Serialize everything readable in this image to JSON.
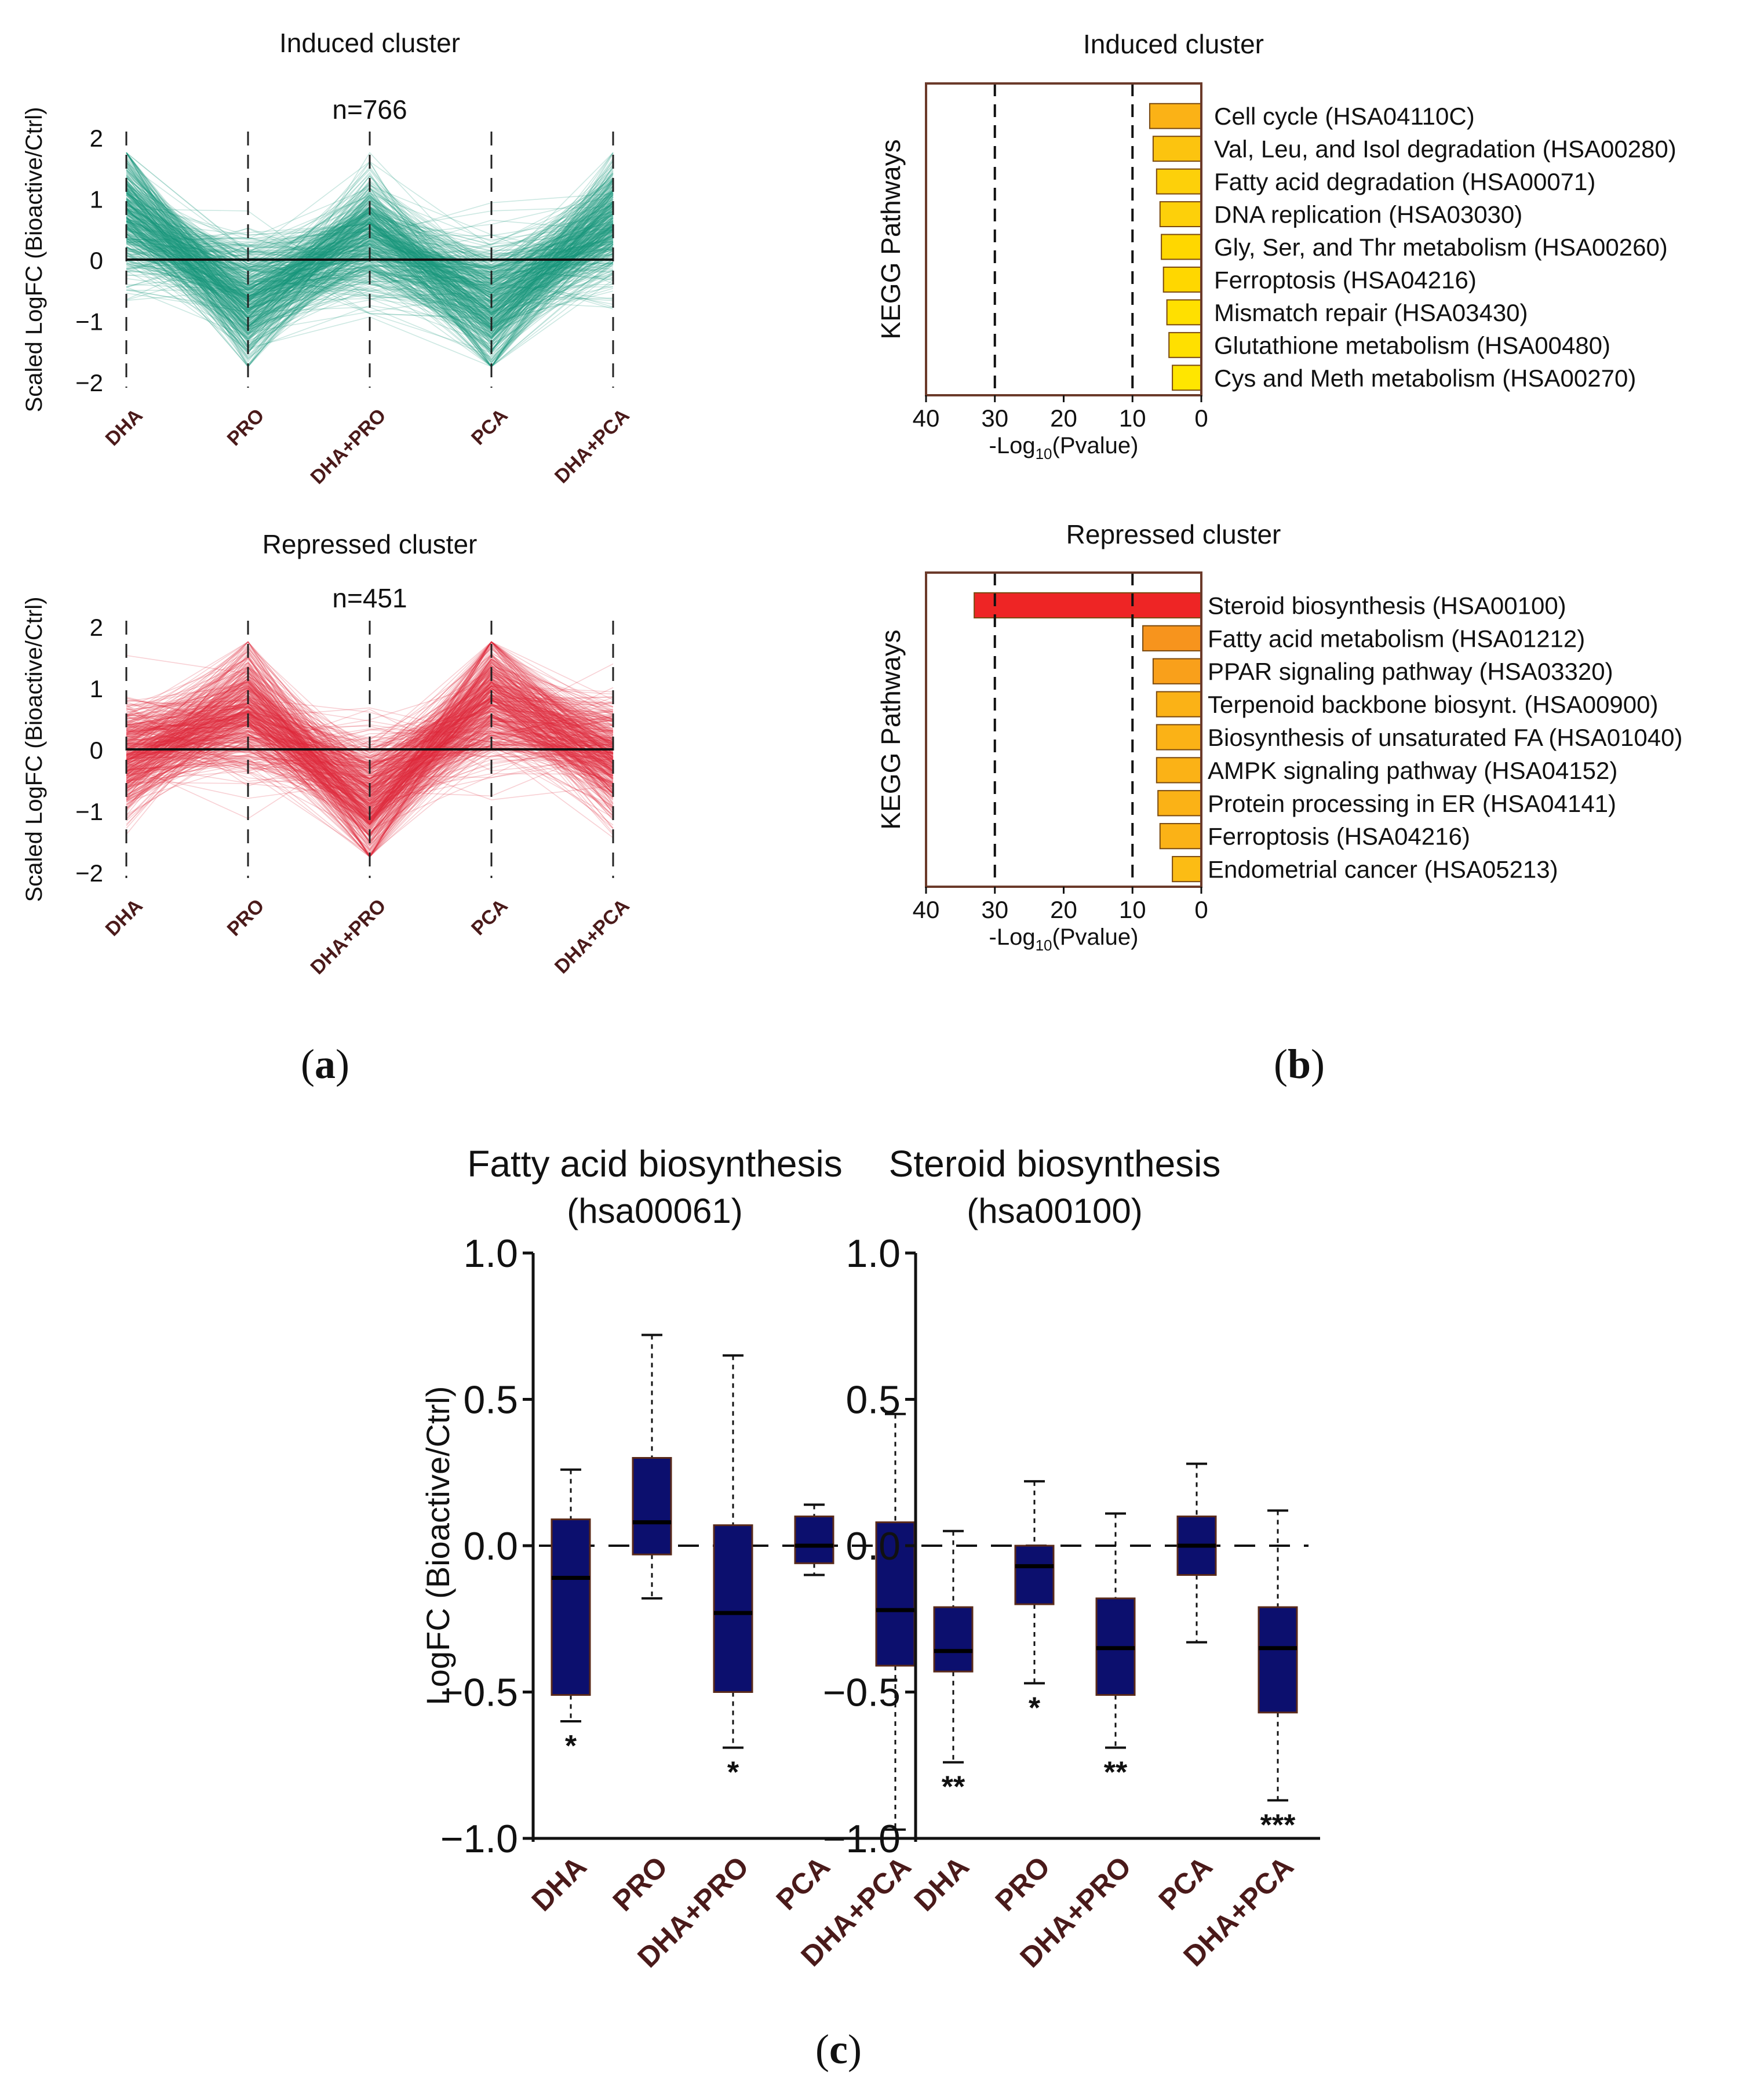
{
  "panel_labels": {
    "a": "a",
    "b": "b",
    "c": "c"
  },
  "colors": {
    "induced": "#17977b",
    "repressed": "#e02b3d",
    "box": "#0c0f6e",
    "xtick": "#4a1a1a",
    "kegg_frame": "#6b3a2a",
    "bar_red": "#ee2525",
    "bar_orange": "#f7941d",
    "bar_orange2": "#fbb216",
    "bar_yellow": "#ffd700",
    "bar_yellow2": "#ffe600"
  },
  "chart_data": [
    {
      "id": "a-induced",
      "type": "line",
      "title": "Induced cluster",
      "subtitle": "n=766",
      "n_lines": 766,
      "ylabel": "Scaled LogFC (Bioactive/Ctrl)",
      "categories": [
        "DHA",
        "PRO",
        "DHA+PRO",
        "PCA",
        "DHA+PCA"
      ],
      "yticks": [
        "2",
        "1",
        "0",
        "−1",
        "−2"
      ],
      "ylim": [
        -2,
        2
      ],
      "pattern": [
        1.1,
        -1.0,
        0.6,
        -1.1,
        0.9
      ]
    },
    {
      "id": "a-repressed",
      "type": "line",
      "title": "Repressed cluster",
      "subtitle": "n=451",
      "n_lines": 451,
      "ylabel": "Scaled LogFC (Bioactive/Ctrl)",
      "categories": [
        "DHA",
        "PRO",
        "DHA+PRO",
        "PCA",
        "DHA+PCA"
      ],
      "yticks": [
        "2",
        "1",
        "0",
        "−1",
        "−2"
      ],
      "ylim": [
        -2,
        2
      ],
      "pattern": [
        -0.2,
        0.9,
        -1.2,
        1.2,
        -0.2
      ]
    },
    {
      "id": "b-induced",
      "type": "bar",
      "orientation": "horizontal",
      "title": "Induced cluster",
      "ylabel": "KEGG Pathways",
      "xlabel_main": "-Log",
      "xlabel_sub": "10",
      "xlabel_tail": "(Pvalue)",
      "xlim": [
        40,
        0
      ],
      "xticks": [
        "40",
        "30",
        "20",
        "10",
        "0"
      ],
      "dashed_at": [
        30,
        10
      ],
      "categories": [
        "Cell cycle (HSA04110C)",
        "Val, Leu, and Isol degradation (HSA00280)",
        "Fatty acid degradation (HSA00071)",
        "DNA replication (HSA03030)",
        "Gly, Ser, and Thr metabolism (HSA00260)",
        "Ferroptosis (HSA04216)",
        "Mismatch repair (HSA03430)",
        "Glutathione metabolism (HSA00480)",
        "Cys and Meth metabolism (HSA00270)"
      ],
      "values": [
        7.5,
        7.0,
        6.5,
        6.0,
        5.8,
        5.5,
        5.0,
        4.7,
        4.2
      ],
      "bar_colors": [
        "#fbb216",
        "#fcc40f",
        "#fdd00a",
        "#fdd00a",
        "#ffd700",
        "#ffd700",
        "#ffe000",
        "#ffe000",
        "#ffe600"
      ]
    },
    {
      "id": "b-repressed",
      "type": "bar",
      "orientation": "horizontal",
      "title": "Repressed cluster",
      "ylabel": "KEGG Pathways",
      "xlabel_main": "-Log",
      "xlabel_sub": "10",
      "xlabel_tail": "(Pvalue)",
      "xlim": [
        40,
        0
      ],
      "xticks": [
        "40",
        "30",
        "20",
        "10",
        "0"
      ],
      "dashed_at": [
        30,
        10
      ],
      "categories": [
        "Steroid biosynthesis (HSA00100)",
        "Fatty acid metabolism (HSA01212)",
        "PPAR signaling pathway (HSA03320)",
        "Terpenoid backbone biosynt. (HSA00900)",
        "Biosynthesis of unsaturated FA (HSA01040)",
        "AMPK signaling pathway (HSA04152)",
        "Protein processing in ER (HSA04141)",
        "Ferroptosis (HSA04216)",
        "Endometrial cancer (HSA05213)"
      ],
      "values": [
        33.0,
        8.5,
        7.0,
        6.5,
        6.5,
        6.5,
        6.3,
        6.0,
        4.2
      ],
      "bar_colors": [
        "#ee2525",
        "#f7941d",
        "#f9a01b",
        "#fbb216",
        "#fbb216",
        "#fbb216",
        "#fbb216",
        "#fbb216",
        "#fcbc14"
      ]
    },
    {
      "id": "c-fatty",
      "type": "box",
      "title": "Fatty acid biosynthesis",
      "subtitle": "(hsa00061)",
      "ylabel": "LogFC (Bioactive/Ctrl)",
      "ylim": [
        -1.0,
        1.0
      ],
      "yticks": [
        "1.0",
        "0.5",
        "0.0",
        "−0.5",
        "−1.0"
      ],
      "categories": [
        "DHA",
        "PRO",
        "DHA+PRO",
        "PCA",
        "DHA+PCA"
      ],
      "boxes": [
        {
          "whisker_low": -0.6,
          "q1": -0.51,
          "median": -0.11,
          "q3": 0.09,
          "whisker_high": 0.26,
          "sig": "*"
        },
        {
          "whisker_low": -0.18,
          "q1": -0.03,
          "median": 0.08,
          "q3": 0.3,
          "whisker_high": 0.72,
          "sig": ""
        },
        {
          "whisker_low": -0.69,
          "q1": -0.5,
          "median": -0.23,
          "q3": 0.07,
          "whisker_high": 0.65,
          "sig": "*"
        },
        {
          "whisker_low": -0.1,
          "q1": -0.06,
          "median": 0.0,
          "q3": 0.1,
          "whisker_high": 0.14,
          "sig": ""
        },
        {
          "whisker_low": -0.97,
          "q1": -0.41,
          "median": -0.22,
          "q3": 0.08,
          "whisker_high": 0.45,
          "sig": ""
        }
      ]
    },
    {
      "id": "c-steroid",
      "type": "box",
      "title": "Steroid biosynthesis",
      "subtitle": "(hsa00100)",
      "ylabel": "",
      "ylim": [
        -1.0,
        1.0
      ],
      "yticks": [
        "1.0",
        "0.5",
        "0.0",
        "−0.5",
        "−1.0"
      ],
      "categories": [
        "DHA",
        "PRO",
        "DHA+PRO",
        "PCA",
        "DHA+PCA"
      ],
      "boxes": [
        {
          "whisker_low": -0.74,
          "q1": -0.43,
          "median": -0.36,
          "q3": -0.21,
          "whisker_high": 0.05,
          "sig": "**"
        },
        {
          "whisker_low": -0.47,
          "q1": -0.2,
          "median": -0.07,
          "q3": 0.0,
          "whisker_high": 0.22,
          "sig": "*"
        },
        {
          "whisker_low": -0.69,
          "q1": -0.51,
          "median": -0.35,
          "q3": -0.18,
          "whisker_high": 0.11,
          "sig": "**"
        },
        {
          "whisker_low": -0.33,
          "q1": -0.1,
          "median": 0.0,
          "q3": 0.1,
          "whisker_high": 0.28,
          "sig": ""
        },
        {
          "whisker_low": -0.87,
          "q1": -0.57,
          "median": -0.35,
          "q3": -0.21,
          "whisker_high": 0.12,
          "sig": "***"
        }
      ]
    }
  ]
}
